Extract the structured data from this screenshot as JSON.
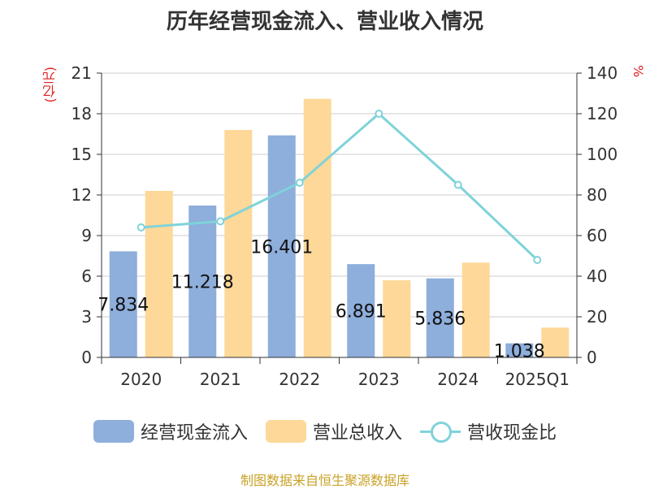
{
  "chart_data": {
    "type": "bar",
    "title": "历年经营现金流入、营业收入情况",
    "y_left_unit": "(亿元)",
    "y_right_unit": "%",
    "categories": [
      "2020",
      "2021",
      "2022",
      "2023",
      "2024",
      "2025Q1"
    ],
    "y_left_ticks": [
      "0",
      "3",
      "6",
      "9",
      "12",
      "15",
      "18",
      "21"
    ],
    "y_right_ticks": [
      "0",
      "20",
      "40",
      "60",
      "80",
      "100",
      "120",
      "140"
    ],
    "ylim_left": [
      0,
      21
    ],
    "ylim_right": [
      0,
      140
    ],
    "grid": true,
    "legend_position": "bottom",
    "series": [
      {
        "name": "经营现金流入",
        "type": "bar",
        "axis": "left",
        "color": "#8eaedb",
        "values": [
          7.834,
          11.218,
          16.401,
          6.891,
          5.836,
          1.038
        ],
        "labels": [
          "7.834",
          "11.218",
          "16.401",
          "6.891",
          "5.836",
          "1.038"
        ]
      },
      {
        "name": "营业总收入",
        "type": "bar",
        "axis": "left",
        "color": "#fdd898",
        "values": [
          12.3,
          16.8,
          19.1,
          5.7,
          7.0,
          2.2
        ]
      },
      {
        "name": "营收现金比",
        "type": "line",
        "axis": "right",
        "color": "#7fd3d9",
        "values": [
          64,
          67,
          86,
          120,
          85,
          48
        ]
      }
    ]
  },
  "source": "制图数据来自恒生聚源数据库"
}
